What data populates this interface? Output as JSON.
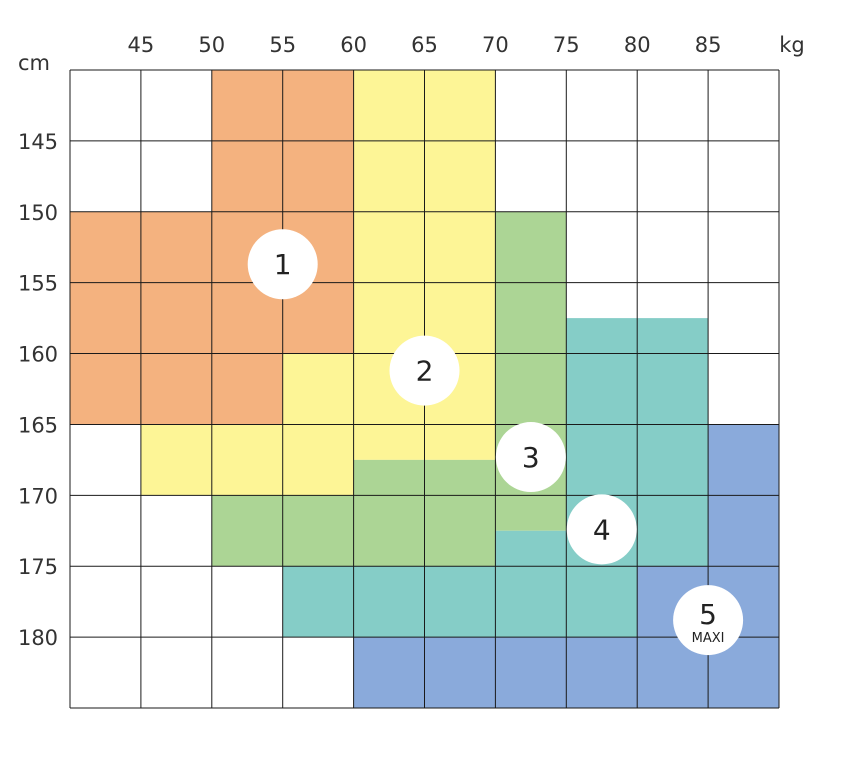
{
  "chart_data": {
    "type": "heatmap",
    "x_unit": "kg",
    "y_unit": "cm",
    "x_ticks": [
      "45",
      "50",
      "55",
      "60",
      "65",
      "70",
      "75",
      "80",
      "85"
    ],
    "y_ticks": [
      "145",
      "150",
      "155",
      "160",
      "165",
      "170",
      "175",
      "180"
    ],
    "x_range": [
      40,
      90
    ],
    "y_range": [
      140,
      185
    ],
    "grid": true,
    "colors": {
      "1": "#f4b27f",
      "2": "#fdf596",
      "3": "#acd595",
      "4": "#85cdc7",
      "5": "#8aaadb",
      "grid": "#1a1a1a",
      "badge": "#ffffff"
    },
    "zones": [
      {
        "size": "1",
        "rects": [
          {
            "x": [
              50,
              60
            ],
            "y": [
              140,
              150
            ]
          },
          {
            "x": [
              40,
              60
            ],
            "y": [
              150,
              160
            ]
          },
          {
            "x": [
              40,
              55
            ],
            "y": [
              160,
              165
            ]
          }
        ]
      },
      {
        "size": "2",
        "rects": [
          {
            "x": [
              60,
              70
            ],
            "y": [
              140,
              150
            ]
          },
          {
            "x": [
              60,
              70
            ],
            "y": [
              150,
              160
            ]
          },
          {
            "x": [
              55,
              70
            ],
            "y": [
              160,
              165
            ]
          },
          {
            "x": [
              45,
              60
            ],
            "y": [
              165,
              170
            ]
          },
          {
            "x": [
              60,
              70
            ],
            "y": [
              165,
              167.5
            ]
          }
        ]
      },
      {
        "size": "3",
        "rects": [
          {
            "x": [
              70,
              75
            ],
            "y": [
              150,
              172.5
            ]
          },
          {
            "x": [
              60,
              70
            ],
            "y": [
              167.5,
              170
            ]
          },
          {
            "x": [
              50,
              70
            ],
            "y": [
              170,
              175
            ]
          }
        ]
      },
      {
        "size": "4",
        "rects": [
          {
            "x": [
              75,
              85
            ],
            "y": [
              157.5,
              165
            ]
          },
          {
            "x": [
              75,
              85
            ],
            "y": [
              165,
              175
            ]
          },
          {
            "x": [
              70,
              75
            ],
            "y": [
              172.5,
              175
            ]
          },
          {
            "x": [
              55,
              80
            ],
            "y": [
              175,
              180
            ]
          }
        ]
      },
      {
        "size": "5",
        "rects": [
          {
            "x": [
              85,
              90
            ],
            "y": [
              165,
              175
            ]
          },
          {
            "x": [
              80,
              90
            ],
            "y": [
              175,
              180
            ]
          },
          {
            "x": [
              60,
              90
            ],
            "y": [
              180,
              185
            ]
          }
        ]
      }
    ],
    "badges": [
      {
        "label": "1",
        "sublabel": "",
        "x": 55,
        "y": 153.7
      },
      {
        "label": "2",
        "sublabel": "",
        "x": 65,
        "y": 161.2
      },
      {
        "label": "3",
        "sublabel": "",
        "x": 72.5,
        "y": 167.3
      },
      {
        "label": "4",
        "sublabel": "",
        "x": 77.5,
        "y": 172.4
      },
      {
        "label": "5",
        "sublabel": "MAXI",
        "x": 85,
        "y": 178.8
      }
    ]
  }
}
